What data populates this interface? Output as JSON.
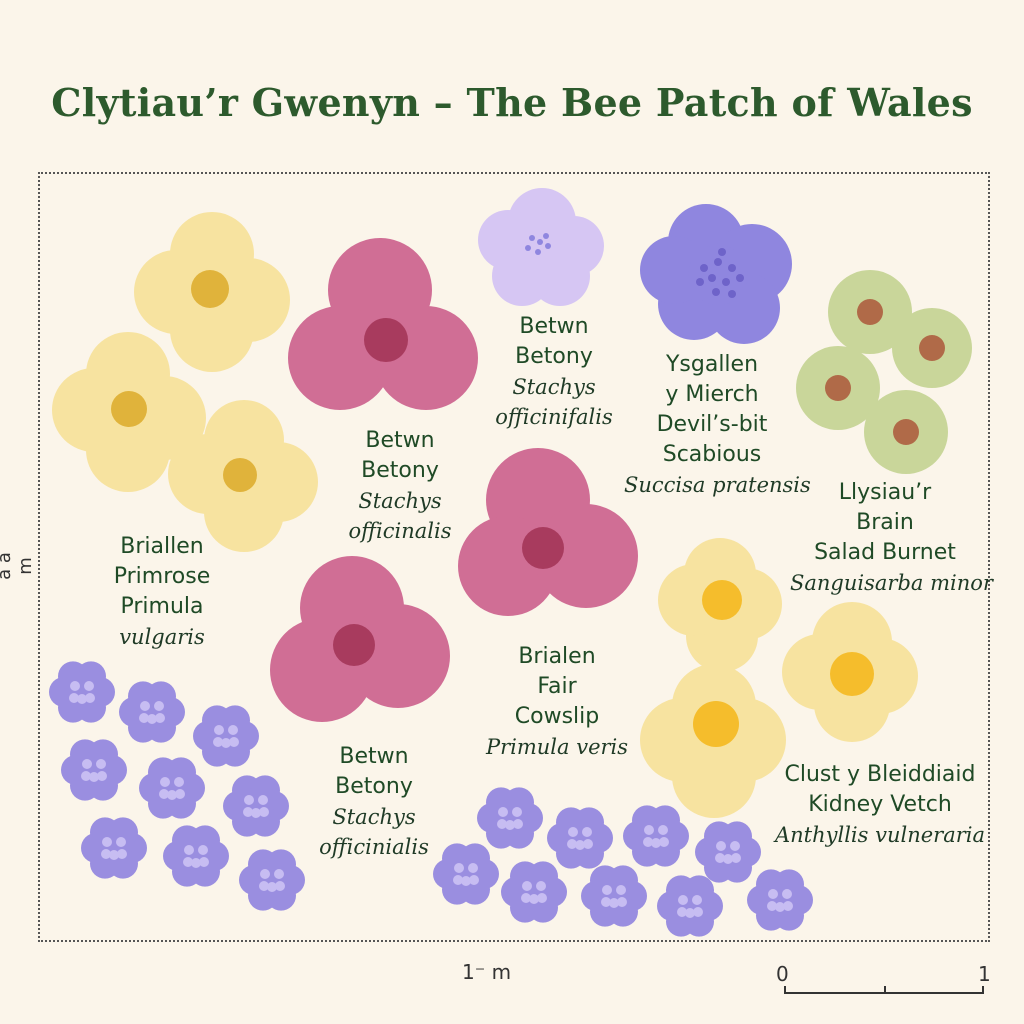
{
  "title": "Clytiau’r Gwenyn – The Bee Patch of Wales",
  "side_label": "a a m",
  "width_label": "1⁻ m",
  "scale": {
    "start": "0",
    "end": "1"
  },
  "colors": {
    "primrose": "#f7e3a0",
    "primrose_center": "#e0b33b",
    "betony": "#d06e95",
    "betony_center": "#a83b5e",
    "scabious_light": "#d6c6f3",
    "scabious_dark": "#8f86df",
    "burnet": "#c9d69a",
    "burnet_center": "#b06a48",
    "cowslip_center": "#f5bd2c",
    "violet": "#9a8ee0",
    "violet_center": "#c7bdf2"
  },
  "plants": [
    {
      "id": "primrose",
      "welsh": "Briallen",
      "common": "Primrose",
      "latin": "Primula",
      "latin2": "vulgaris"
    },
    {
      "id": "betony-1",
      "welsh": "Betwn",
      "common": "Betony",
      "latin": "Stachys",
      "latin2": "officinalis"
    },
    {
      "id": "betony-2",
      "welsh": "Betwn",
      "common": "Betony",
      "latin": "Stachys",
      "latin2": "officinifalis"
    },
    {
      "id": "betony-3",
      "welsh": "Betwn",
      "common": "Betony",
      "latin": "Stachys",
      "latin2": "officinialis"
    },
    {
      "id": "scabious",
      "welsh": "Ysgallen",
      "welsh2": "y Mierch",
      "common": "Devil’s-bit",
      "common2": "Scabious",
      "latin": "Succisa pratensis"
    },
    {
      "id": "burnet",
      "welsh": "Llysiau’r",
      "welsh2": "Brain",
      "common": "Salad Burnet",
      "latin": "Sanguisarba minor"
    },
    {
      "id": "cowslip",
      "welsh": "Brialen",
      "welsh2": "Fair",
      "common": "Cowslip",
      "latin": "Primula veris"
    },
    {
      "id": "vetch",
      "welsh": "Clust y Bleiddiaid",
      "common": "Kidney Vetch",
      "latin": "Anthyllis vulneraria"
    }
  ]
}
